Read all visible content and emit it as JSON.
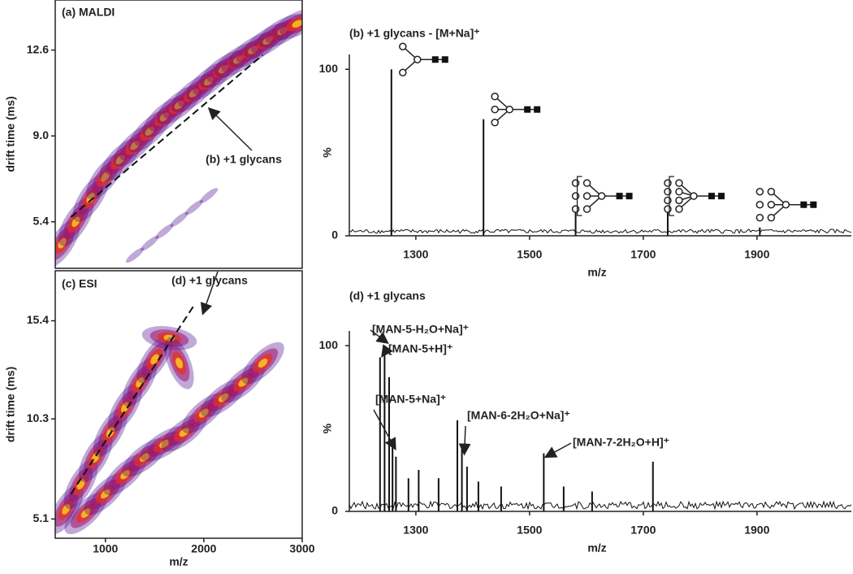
{
  "chart_data": [
    {
      "type": "heatmap",
      "title": "(a) MALDI",
      "ylabel": "drift time (ms)",
      "xlim": [
        490,
        3000
      ],
      "ylim": [
        3.45,
        14.7
      ],
      "yticks": [
        5.4,
        {
          "value": 9,
          "label": "9.0"
        },
        12.6
      ],
      "bands": [
        {
          "x": [
            560,
            700,
            850,
            1000,
            1150,
            1300,
            1450,
            1600,
            1750,
            1900,
            2050,
            2200,
            2350,
            2500,
            2650,
            2800,
            2950
          ],
          "y": [
            4.5,
            5.4,
            6.4,
            7.3,
            8.0,
            8.6,
            9.2,
            9.8,
            10.3,
            10.8,
            11.3,
            11.8,
            12.2,
            12.6,
            13.0,
            13.4,
            13.7
          ]
        },
        {
          "x": [
            1300,
            1450,
            1600,
            1750,
            1900,
            2050
          ],
          "y": [
            4.0,
            4.5,
            5.0,
            5.5,
            6.0,
            6.5
          ]
        }
      ],
      "trend_line": {
        "x": [
          650,
          2600
        ],
        "y": [
          5.6,
          12.4
        ]
      },
      "annotation": "(b) +1 glycans"
    },
    {
      "type": "spectrum",
      "title": "(b) +1 glycans -  [M+Na]⁺",
      "xlabel": "m/z",
      "ylabel": "%",
      "xlim": [
        1183,
        2066
      ],
      "ylim": [
        0,
        105
      ],
      "xticks": [
        1300,
        1500,
        1700,
        1900
      ],
      "yticks": [
        0,
        100
      ],
      "x": [
        1257,
        1419,
        1581,
        1743,
        1905
      ],
      "values": [
        100,
        70,
        18,
        18,
        5
      ]
    },
    {
      "type": "heatmap",
      "title": "(c) ESI",
      "ylabel": "drift time (ms)",
      "xlabel": "m/z",
      "xlim": [
        490,
        3000
      ],
      "ylim": [
        4.1,
        18.0
      ],
      "xticks": [
        1000,
        2000,
        3000
      ],
      "yticks": [
        5.1,
        10.3,
        15.4
      ],
      "bands": [
        {
          "x": [
            600,
            750,
            900,
            1050,
            1200,
            1350,
            1500,
            1650,
            1750
          ],
          "y": [
            5.6,
            6.9,
            8.3,
            9.6,
            10.9,
            12.2,
            13.4,
            14.5,
            13.2
          ]
        },
        {
          "x": [
            800,
            1000,
            1200,
            1400,
            1600,
            1800,
            2000,
            2200,
            2400,
            2600
          ],
          "y": [
            5.4,
            6.4,
            7.4,
            8.3,
            9.0,
            9.6,
            10.6,
            11.4,
            12.2,
            13.2
          ]
        }
      ],
      "trend_line": {
        "x": [
          650,
          1900
        ],
        "y": [
          6.4,
          16.2
        ]
      },
      "annotation": "(d) +1 glycans"
    },
    {
      "type": "spectrum",
      "title": "(d) +1 glycans",
      "xlabel": "m/z",
      "ylabel": "%",
      "xlim": [
        1183,
        2066
      ],
      "ylim": [
        0,
        105
      ],
      "xticks": [
        1300,
        1500,
        1700,
        1900
      ],
      "yticks": [
        0,
        100
      ],
      "x": [
        1237,
        1245,
        1253,
        1259,
        1265,
        1287,
        1305,
        1340,
        1373,
        1381,
        1390,
        1410,
        1450,
        1525,
        1560,
        1610,
        1717
      ],
      "values": [
        93,
        100,
        81,
        42,
        33,
        20,
        25,
        20,
        55,
        38,
        27,
        18,
        15,
        35,
        15,
        12,
        30
      ],
      "annotations": [
        "[MAN-5-H₂O+Na]⁺",
        "[MAN-5+H]⁺",
        "[MAN-5+Na]⁺",
        "[MAN-6-2H₂O+Na]⁺",
        "[MAN-7-2H₂O+H]⁺"
      ]
    }
  ]
}
